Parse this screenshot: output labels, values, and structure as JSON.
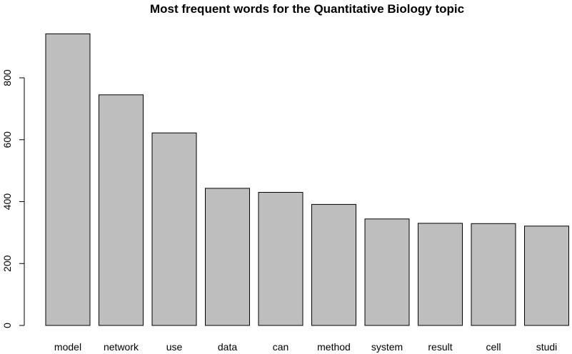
{
  "chart_data": {
    "type": "bar",
    "title": "Most frequent words for the Quantitative Biology topic",
    "xlabel": "",
    "ylabel": "",
    "categories": [
      "model",
      "network",
      "use",
      "data",
      "can",
      "method",
      "system",
      "result",
      "cell",
      "studi"
    ],
    "values": [
      942,
      745,
      622,
      443,
      430,
      391,
      344,
      330,
      329,
      321
    ],
    "ylim": [
      0,
      945
    ],
    "yticks": [
      0,
      200,
      400,
      600,
      800
    ],
    "grid": false,
    "legend": "none",
    "bar_color": "#bebebe",
    "bar_border_color": "#000000"
  }
}
